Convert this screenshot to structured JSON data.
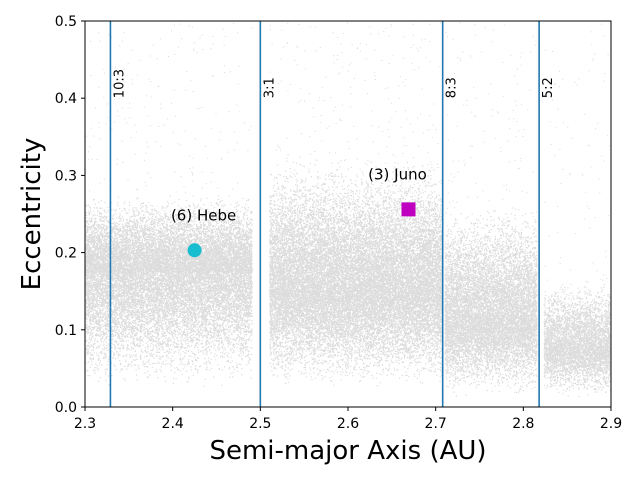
{
  "chart_data": {
    "type": "scatter",
    "xlabel": "Semi-major Axis (AU)",
    "ylabel": "Eccentricity",
    "xlim": [
      2.3,
      2.9
    ],
    "ylim": [
      0.0,
      0.5
    ],
    "xticks": [
      2.3,
      2.4,
      2.5,
      2.6,
      2.7,
      2.8,
      2.9
    ],
    "xtick_labels": [
      "2.3",
      "2.4",
      "2.5",
      "2.6",
      "2.7",
      "2.8",
      "2.9"
    ],
    "yticks": [
      0.0,
      0.1,
      0.2,
      0.3,
      0.4,
      0.5
    ],
    "ytick_labels": [
      "0.0",
      "0.1",
      "0.2",
      "0.3",
      "0.4",
      "0.5"
    ],
    "grid": false,
    "legend": "none",
    "colors": {
      "resonance": "#1f77b4",
      "background_points": "#808080",
      "hebe": "#17becf",
      "juno": "#c000c0"
    },
    "resonances": [
      {
        "label": "10:3",
        "x": 2.329
      },
      {
        "label": "3:1",
        "x": 2.5
      },
      {
        "label": "8:3",
        "x": 2.708
      },
      {
        "label": "5:2",
        "x": 2.818
      }
    ],
    "highlighted": [
      {
        "label": "(6) Hebe",
        "x": 2.425,
        "y": 0.203,
        "marker": "circle"
      },
      {
        "label": "(3) Juno",
        "x": 2.669,
        "y": 0.256,
        "marker": "square"
      }
    ],
    "density_regions": [
      {
        "x": [
          2.3,
          2.49
        ],
        "y": [
          0.02,
          0.28
        ],
        "center": 0.175
      },
      {
        "x": [
          2.51,
          2.707
        ],
        "y": [
          0.02,
          0.33
        ],
        "center": 0.16
      },
      {
        "x": [
          2.71,
          2.815
        ],
        "y": [
          0.01,
          0.27
        ],
        "center": 0.12
      },
      {
        "x": [
          2.823,
          2.9
        ],
        "y": [
          0.01,
          0.17
        ],
        "center": 0.08
      }
    ]
  }
}
